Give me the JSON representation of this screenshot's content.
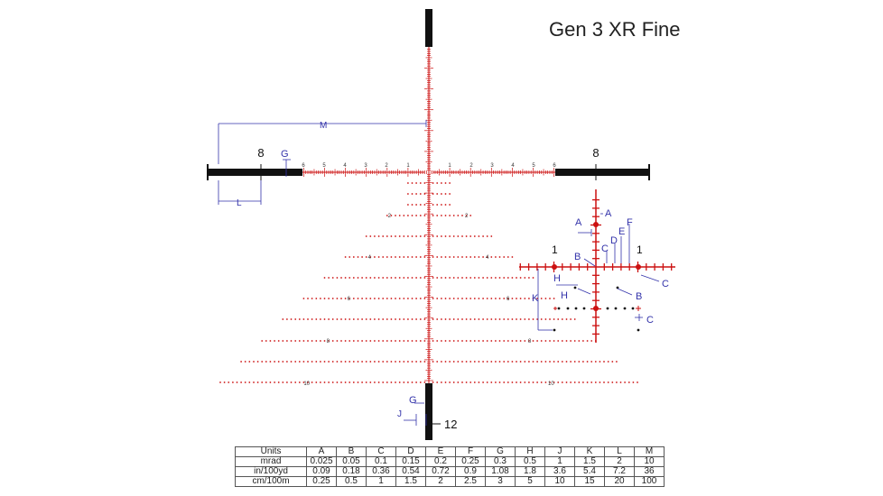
{
  "title": "Gen 3 XR Fine",
  "colors": {
    "red": "#cc1111",
    "blue": "#3333aa",
    "black": "#111111",
    "stroke": "#555555"
  },
  "horizontal_scale_labels": [
    "6",
    "5",
    "4",
    "3",
    "2",
    "1",
    "1",
    "2",
    "3",
    "4",
    "5",
    "6"
  ],
  "holdover_labels": {
    "row2": "2",
    "row4": "4",
    "row6": "6",
    "row8": "8",
    "row10": "10"
  },
  "main_labels": {
    "bar_left": "8",
    "bar_right": "8",
    "bottom_bar": "12",
    "M": "M",
    "G_top": "G",
    "L": "L",
    "G_bottom": "G",
    "J": "J"
  },
  "inset_labels": {
    "one_left": "1",
    "one_right": "1",
    "A1": "A",
    "A2": "A",
    "B1": "B",
    "B2": "B",
    "C1": "C",
    "C2": "C",
    "C3": "C",
    "D": "D",
    "E": "E",
    "F": "F",
    "H1": "H",
    "H2": "H",
    "K": "K"
  },
  "table": {
    "header": [
      "Units",
      "A",
      "B",
      "C",
      "D",
      "E",
      "F",
      "G",
      "H",
      "J",
      "K",
      "L",
      "M"
    ],
    "rows": [
      [
        "mrad",
        "0.025",
        "0.05",
        "0.1",
        "0.15",
        "0.2",
        "0.25",
        "0.3",
        "0.5",
        "1",
        "1.5",
        "2",
        "10"
      ],
      [
        "in/100yd",
        "0.09",
        "0.18",
        "0.36",
        "0.54",
        "0.72",
        "0.9",
        "1.08",
        "1.8",
        "3.6",
        "5.4",
        "7.2",
        "36"
      ],
      [
        "cm/100m",
        "0.25",
        "0.5",
        "1",
        "1.5",
        "2",
        "2.5",
        "3",
        "5",
        "10",
        "15",
        "20",
        "100"
      ]
    ]
  }
}
